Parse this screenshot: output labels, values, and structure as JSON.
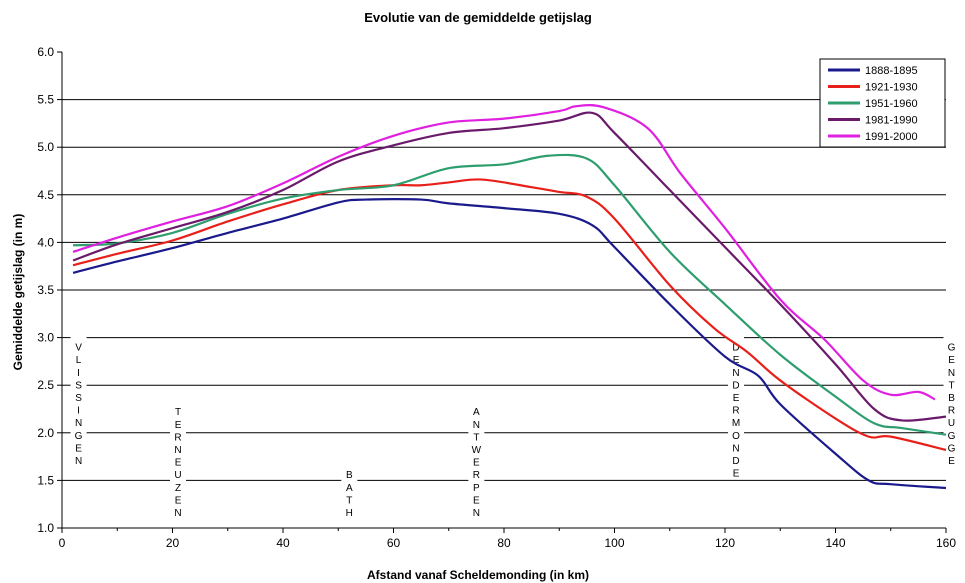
{
  "chart_data": {
    "type": "line",
    "title": "Evolutie van de gemiddelde getijslag",
    "xlabel": "Afstand vanaf Scheldemonding (in km)",
    "ylabel": "Gemiddelde getijslag (in m)",
    "xlim": [
      0,
      160
    ],
    "ylim": [
      1.0,
      6.0
    ],
    "x_ticks": [
      "0",
      "20",
      "40",
      "60",
      "80",
      "100",
      "120",
      "140",
      "160"
    ],
    "y_ticks": [
      "1.0",
      "1.5",
      "2.0",
      "2.5",
      "3.0",
      "3.5",
      "4.0",
      "4.5",
      "5.0",
      "5.5",
      "6.0"
    ],
    "grid": "horizontal",
    "legend_position": "top-right",
    "series": [
      {
        "name": "1888-1895",
        "color": "#1a1a8c",
        "points": [
          [
            2,
            3.68
          ],
          [
            10,
            3.8
          ],
          [
            20,
            3.94
          ],
          [
            30,
            4.1
          ],
          [
            40,
            4.25
          ],
          [
            50,
            4.42
          ],
          [
            55,
            4.45
          ],
          [
            65,
            4.45
          ],
          [
            70,
            4.41
          ],
          [
            80,
            4.36
          ],
          [
            90,
            4.3
          ],
          [
            96,
            4.18
          ],
          [
            100,
            3.95
          ],
          [
            110,
            3.35
          ],
          [
            120,
            2.8
          ],
          [
            126,
            2.6
          ],
          [
            130,
            2.3
          ],
          [
            140,
            1.78
          ],
          [
            146,
            1.5
          ],
          [
            150,
            1.46
          ],
          [
            160,
            1.42
          ]
        ]
      },
      {
        "name": "1921-1930",
        "color": "#e8201a",
        "points": [
          [
            2,
            3.76
          ],
          [
            10,
            3.88
          ],
          [
            20,
            4.02
          ],
          [
            30,
            4.22
          ],
          [
            40,
            4.4
          ],
          [
            50,
            4.55
          ],
          [
            60,
            4.6
          ],
          [
            65,
            4.6
          ],
          [
            70,
            4.63
          ],
          [
            76,
            4.66
          ],
          [
            85,
            4.58
          ],
          [
            90,
            4.53
          ],
          [
            95,
            4.48
          ],
          [
            100,
            4.25
          ],
          [
            110,
            3.55
          ],
          [
            118,
            3.1
          ],
          [
            124,
            2.85
          ],
          [
            130,
            2.55
          ],
          [
            140,
            2.15
          ],
          [
            146,
            1.96
          ],
          [
            150,
            1.96
          ],
          [
            160,
            1.82
          ]
        ]
      },
      {
        "name": "1951-1960",
        "color": "#2e9e6e",
        "points": [
          [
            2,
            3.97
          ],
          [
            10,
            3.99
          ],
          [
            20,
            4.1
          ],
          [
            30,
            4.3
          ],
          [
            40,
            4.46
          ],
          [
            50,
            4.55
          ],
          [
            60,
            4.6
          ],
          [
            70,
            4.78
          ],
          [
            80,
            4.82
          ],
          [
            88,
            4.91
          ],
          [
            95,
            4.88
          ],
          [
            100,
            4.6
          ],
          [
            110,
            3.9
          ],
          [
            120,
            3.35
          ],
          [
            130,
            2.82
          ],
          [
            140,
            2.38
          ],
          [
            147,
            2.1
          ],
          [
            152,
            2.05
          ],
          [
            160,
            1.98
          ]
        ]
      },
      {
        "name": "1981-1990",
        "color": "#6a1a6a",
        "points": [
          [
            2,
            3.81
          ],
          [
            10,
            3.98
          ],
          [
            20,
            4.15
          ],
          [
            30,
            4.32
          ],
          [
            40,
            4.55
          ],
          [
            50,
            4.85
          ],
          [
            60,
            5.02
          ],
          [
            70,
            5.15
          ],
          [
            80,
            5.2
          ],
          [
            90,
            5.28
          ],
          [
            96,
            5.36
          ],
          [
            100,
            5.15
          ],
          [
            110,
            4.55
          ],
          [
            120,
            3.95
          ],
          [
            130,
            3.35
          ],
          [
            140,
            2.72
          ],
          [
            147,
            2.25
          ],
          [
            152,
            2.13
          ],
          [
            160,
            2.17
          ]
        ]
      },
      {
        "name": "1991-2000",
        "color": "#e020e0",
        "points": [
          [
            2,
            3.9
          ],
          [
            10,
            4.05
          ],
          [
            20,
            4.22
          ],
          [
            30,
            4.38
          ],
          [
            40,
            4.62
          ],
          [
            50,
            4.9
          ],
          [
            60,
            5.12
          ],
          [
            70,
            5.26
          ],
          [
            80,
            5.3
          ],
          [
            90,
            5.38
          ],
          [
            93,
            5.43
          ],
          [
            98,
            5.42
          ],
          [
            106,
            5.2
          ],
          [
            112,
            4.72
          ],
          [
            120,
            4.15
          ],
          [
            130,
            3.4
          ],
          [
            138,
            2.98
          ],
          [
            145,
            2.55
          ],
          [
            150,
            2.4
          ],
          [
            155,
            2.43
          ],
          [
            158,
            2.35
          ]
        ]
      }
    ],
    "station_labels": [
      {
        "x": 3,
        "text": "VLISSINGEN"
      },
      {
        "x": 21,
        "text": "TERNEUZEN"
      },
      {
        "x": 52,
        "text": "BATH"
      },
      {
        "x": 75,
        "text": "ANTWERPEN"
      },
      {
        "x": 122,
        "text": "DENDERMONDE"
      },
      {
        "x": 161,
        "text": "GENTBRUGGE"
      }
    ]
  }
}
